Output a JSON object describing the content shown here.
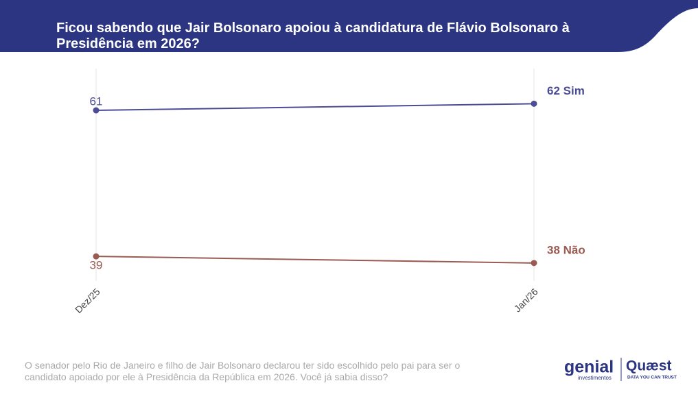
{
  "chart_data": {
    "type": "line",
    "title": "Ficou sabendo que Jair Bolsonaro apoiou à candidatura de Flávio Bolsonaro à Presidência em 2026?",
    "categories": [
      "Dez/25",
      "Jan/26"
    ],
    "series": [
      {
        "name": "Sim",
        "color": "#4b4c94",
        "values": [
          61,
          62
        ],
        "value_labels": [
          "61",
          "62 Sim"
        ]
      },
      {
        "name": "Não",
        "color": "#9a5b52",
        "values": [
          39,
          38
        ],
        "value_labels": [
          "39",
          "38 Não"
        ]
      }
    ],
    "ylim": [
      35.3,
      67.3
    ],
    "grid": true,
    "caption": "O senador pelo Rio de Janeiro e filho de Jair Bolsonaro declarou ter sido escolhido pelo pai para ser o candidato apoiado por ele à Presidência da República em 2026. Você já sabia disso?"
  },
  "branding": {
    "genial": "genial",
    "genial_sub": "investimentos",
    "quaest": "Quæst",
    "tagline": "DATA YOU CAN TRUST"
  }
}
